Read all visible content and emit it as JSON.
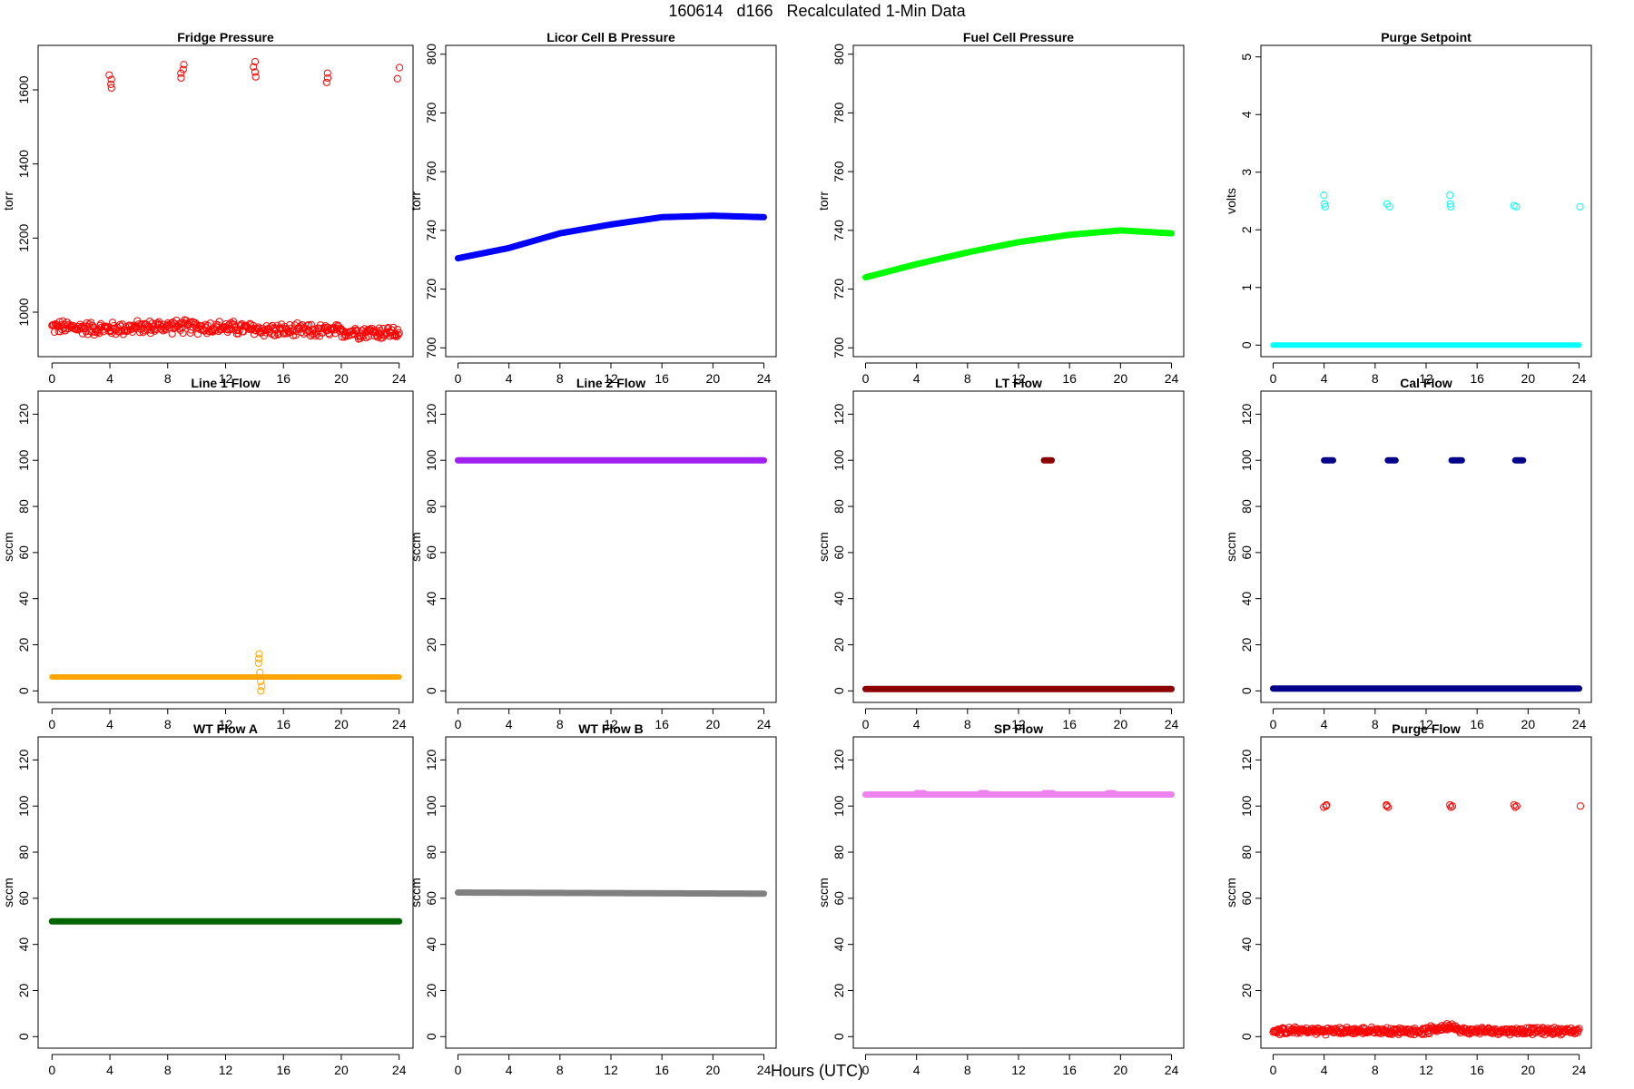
{
  "figure": {
    "title": "160614   d166   Recalculated 1-Min Data",
    "xlabel": "Hours (UTC)"
  },
  "chart_data": [
    {
      "type": "scatter",
      "title": "Fridge Pressure",
      "ylabel": "torr",
      "xlim": [
        0,
        24
      ],
      "ylim": [
        880,
        1720
      ],
      "yticks": [
        1000,
        1200,
        1400,
        1600
      ],
      "xticks": [
        0,
        4,
        8,
        12,
        16,
        20,
        24
      ],
      "color": "#ff0000",
      "marker": "open-circle",
      "series": [
        {
          "kind": "band",
          "x": [
            0,
            4,
            8,
            12,
            16,
            20,
            24
          ],
          "y": [
            960,
            955,
            962,
            958,
            950,
            948,
            945
          ],
          "spread": 22
        },
        {
          "kind": "cluster",
          "x": 4.0,
          "y": [
            1605,
            1615,
            1628,
            1640
          ]
        },
        {
          "kind": "cluster",
          "x": 9.0,
          "y": [
            1632,
            1645,
            1655,
            1668
          ]
        },
        {
          "kind": "cluster",
          "x": 14.0,
          "y": [
            1635,
            1648,
            1662,
            1676
          ]
        },
        {
          "kind": "cluster",
          "x": 19.0,
          "y": [
            1620,
            1632,
            1645
          ]
        },
        {
          "kind": "cluster",
          "x": 24.0,
          "y": [
            1630,
            1660
          ]
        }
      ]
    },
    {
      "type": "scatter",
      "title": "Licor Cell B Pressure",
      "ylabel": "torr",
      "xlim": [
        0,
        24
      ],
      "ylim": [
        697,
        803
      ],
      "yticks": [
        700,
        720,
        740,
        760,
        780,
        800
      ],
      "xticks": [
        0,
        4,
        8,
        12,
        16,
        20,
        24
      ],
      "color": "#0000ff",
      "marker": "filled",
      "series": [
        {
          "kind": "line",
          "x": [
            0,
            4,
            8,
            12,
            16,
            20,
            24
          ],
          "y": [
            730.5,
            734,
            739,
            742,
            744.5,
            745,
            744.5
          ]
        }
      ]
    },
    {
      "type": "scatter",
      "title": "Fuel Cell Pressure",
      "ylabel": "torr",
      "xlim": [
        0,
        24
      ],
      "ylim": [
        697,
        803
      ],
      "yticks": [
        700,
        720,
        740,
        760,
        780,
        800
      ],
      "xticks": [
        0,
        4,
        8,
        12,
        16,
        20,
        24
      ],
      "color": "#00ff00",
      "marker": "filled",
      "series": [
        {
          "kind": "line",
          "x": [
            0,
            4,
            8,
            12,
            16,
            20,
            24
          ],
          "y": [
            724,
            728.5,
            732.5,
            736,
            738.5,
            740,
            739
          ]
        }
      ]
    },
    {
      "type": "scatter",
      "title": "Purge Setpoint",
      "ylabel": "volts",
      "xlim": [
        0,
        24
      ],
      "ylim": [
        -0.2,
        5.2
      ],
      "yticks": [
        0,
        1,
        2,
        3,
        4,
        5
      ],
      "xticks": [
        0,
        4,
        8,
        12,
        16,
        20,
        24
      ],
      "color": "#00ffff",
      "marker": "open-circle",
      "series": [
        {
          "kind": "line",
          "x": [
            0,
            24
          ],
          "y": [
            0,
            0
          ]
        },
        {
          "kind": "cluster",
          "x": 4.0,
          "y": [
            2.4,
            2.45,
            2.6
          ]
        },
        {
          "kind": "cluster",
          "x": 9.0,
          "y": [
            2.4,
            2.45
          ]
        },
        {
          "kind": "cluster",
          "x": 14.0,
          "y": [
            2.4,
            2.45,
            2.6
          ]
        },
        {
          "kind": "cluster",
          "x": 19.0,
          "y": [
            2.4,
            2.42
          ]
        },
        {
          "kind": "cluster",
          "x": 24.0,
          "y": [
            2.4
          ]
        }
      ]
    },
    {
      "type": "scatter",
      "title": "Line 1 Flow",
      "ylabel": "sccm",
      "xlim": [
        0,
        24
      ],
      "ylim": [
        -5,
        130
      ],
      "yticks": [
        0,
        20,
        40,
        60,
        80,
        100,
        120
      ],
      "xticks": [
        0,
        4,
        8,
        12,
        16,
        20,
        24
      ],
      "color": "#ffa500",
      "marker": "open-circle",
      "series": [
        {
          "kind": "line",
          "x": [
            0,
            24
          ],
          "y": [
            6,
            6
          ]
        },
        {
          "kind": "cluster",
          "x": 14.4,
          "y": [
            0,
            2,
            4,
            8,
            12,
            14,
            16
          ]
        }
      ]
    },
    {
      "type": "scatter",
      "title": "Line 2 Flow",
      "ylabel": "sccm",
      "xlim": [
        0,
        24
      ],
      "ylim": [
        -5,
        130
      ],
      "yticks": [
        0,
        20,
        40,
        60,
        80,
        100,
        120
      ],
      "xticks": [
        0,
        4,
        8,
        12,
        16,
        20,
        24
      ],
      "color": "#a020f0",
      "marker": "filled",
      "series": [
        {
          "kind": "line",
          "x": [
            0,
            24
          ],
          "y": [
            100,
            100
          ]
        }
      ]
    },
    {
      "type": "scatter",
      "title": "LT Flow",
      "ylabel": "sccm",
      "xlim": [
        0,
        24
      ],
      "ylim": [
        -5,
        130
      ],
      "yticks": [
        0,
        20,
        40,
        60,
        80,
        100,
        120
      ],
      "xticks": [
        0,
        4,
        8,
        12,
        16,
        20,
        24
      ],
      "color": "#8b0000",
      "marker": "filled",
      "series": [
        {
          "kind": "line",
          "x": [
            0,
            24
          ],
          "y": [
            0.8,
            0.8
          ]
        },
        {
          "kind": "segment",
          "x": [
            14.0,
            14.6
          ],
          "y": 100
        }
      ]
    },
    {
      "type": "scatter",
      "title": "Cal Flow",
      "ylabel": "sccm",
      "xlim": [
        0,
        24
      ],
      "ylim": [
        -5,
        130
      ],
      "yticks": [
        0,
        20,
        40,
        60,
        80,
        100,
        120
      ],
      "xticks": [
        0,
        4,
        8,
        12,
        16,
        20,
        24
      ],
      "color": "#00008b",
      "marker": "filled",
      "series": [
        {
          "kind": "line",
          "x": [
            0,
            24
          ],
          "y": [
            1,
            1
          ]
        },
        {
          "kind": "segment",
          "x": [
            4.0,
            4.7
          ],
          "y": 100
        },
        {
          "kind": "segment",
          "x": [
            9.0,
            9.6
          ],
          "y": 100
        },
        {
          "kind": "segment",
          "x": [
            14.0,
            14.8
          ],
          "y": 100
        },
        {
          "kind": "segment",
          "x": [
            19.0,
            19.6
          ],
          "y": 100
        }
      ]
    },
    {
      "type": "scatter",
      "title": "WT Flow A",
      "ylabel": "sccm",
      "xlim": [
        0,
        24
      ],
      "ylim": [
        -5,
        130
      ],
      "yticks": [
        0,
        20,
        40,
        60,
        80,
        100,
        120
      ],
      "xticks": [
        0,
        4,
        8,
        12,
        16,
        20,
        24
      ],
      "color": "#006400",
      "marker": "filled",
      "series": [
        {
          "kind": "line",
          "x": [
            0,
            24
          ],
          "y": [
            50,
            50
          ]
        }
      ]
    },
    {
      "type": "scatter",
      "title": "WT Flow B",
      "ylabel": "sccm",
      "xlim": [
        0,
        24
      ],
      "ylim": [
        -5,
        130
      ],
      "yticks": [
        0,
        20,
        40,
        60,
        80,
        100,
        120
      ],
      "xticks": [
        0,
        4,
        8,
        12,
        16,
        20,
        24
      ],
      "color": "#808080",
      "marker": "filled",
      "series": [
        {
          "kind": "line",
          "x": [
            0,
            24
          ],
          "y": [
            62.5,
            62
          ]
        }
      ]
    },
    {
      "type": "scatter",
      "title": "SP Flow",
      "ylabel": "sccm",
      "xlim": [
        0,
        24
      ],
      "ylim": [
        -5,
        130
      ],
      "yticks": [
        0,
        20,
        40,
        60,
        80,
        100,
        120
      ],
      "xticks": [
        0,
        4,
        8,
        12,
        16,
        20,
        24
      ],
      "color": "#ee82ee",
      "marker": "filled",
      "series": [
        {
          "kind": "line",
          "x": [
            0,
            24
          ],
          "y": [
            105,
            105
          ]
        },
        {
          "kind": "segment",
          "x": [
            4.0,
            4.6
          ],
          "y": 105.6
        },
        {
          "kind": "segment",
          "x": [
            9.0,
            9.5
          ],
          "y": 105.6
        },
        {
          "kind": "segment",
          "x": [
            14.0,
            14.7
          ],
          "y": 105.6
        },
        {
          "kind": "segment",
          "x": [
            19.0,
            19.5
          ],
          "y": 105.6
        }
      ]
    },
    {
      "type": "scatter",
      "title": "Purge Flow",
      "ylabel": "sccm",
      "xlim": [
        0,
        24
      ],
      "ylim": [
        -5,
        130
      ],
      "yticks": [
        0,
        20,
        40,
        60,
        80,
        100,
        120
      ],
      "xticks": [
        0,
        4,
        8,
        12,
        16,
        20,
        24
      ],
      "color": "#ff0000",
      "marker": "open-circle",
      "series": [
        {
          "kind": "band",
          "x": [
            0,
            4,
            8,
            12,
            14.2,
            14.5,
            16,
            20,
            24
          ],
          "y": [
            2.5,
            2.5,
            2.5,
            2.5,
            5,
            2.5,
            2.5,
            2.5,
            2.5
          ],
          "spread": 1.8
        },
        {
          "kind": "cluster",
          "x": 4.1,
          "y": [
            99.5,
            100,
            100.5
          ]
        },
        {
          "kind": "cluster",
          "x": 9.0,
          "y": [
            99.5,
            100,
            100.5
          ]
        },
        {
          "kind": "cluster",
          "x": 14.0,
          "y": [
            99.5,
            100,
            100.5
          ]
        },
        {
          "kind": "cluster",
          "x": 19.0,
          "y": [
            99.5,
            100,
            100.5
          ]
        },
        {
          "kind": "cluster",
          "x": 24.0,
          "y": [
            100
          ]
        }
      ]
    }
  ]
}
